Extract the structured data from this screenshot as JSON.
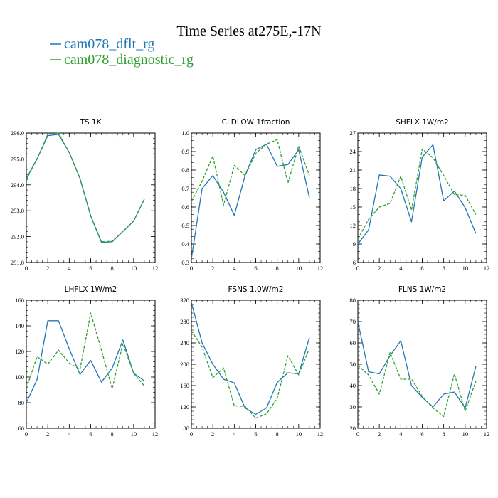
{
  "title": "Time Series at275E,-17N",
  "legend": [
    {
      "label": "cam078_dflt_rg",
      "color": "#1f77b4",
      "dash": "solid"
    },
    {
      "label": "cam078_diagnostic_rg",
      "color": "#2ca02c",
      "dash": "dashed"
    }
  ],
  "chart_data": [
    {
      "type": "line",
      "title": "TS   1K",
      "xlim": [
        0,
        12
      ],
      "ylim": [
        291.0,
        296.0
      ],
      "xticks": [
        0,
        2,
        4,
        6,
        8,
        10,
        12
      ],
      "yticks": [
        291.0,
        292.0,
        293.0,
        294.0,
        295.0,
        296.0
      ],
      "ytick_decimals": 1,
      "x": [
        0,
        1,
        2,
        3,
        4,
        5,
        6,
        7,
        8,
        9,
        10,
        11
      ],
      "series": [
        {
          "name": "cam078_dflt_rg",
          "values": [
            294.25,
            295.0,
            295.9,
            295.95,
            295.25,
            294.25,
            292.8,
            291.78,
            291.8,
            292.2,
            292.6,
            293.45
          ]
        },
        {
          "name": "cam078_diagnostic_rg",
          "values": [
            294.2,
            295.0,
            295.95,
            296.0,
            295.25,
            294.25,
            292.8,
            291.8,
            291.82,
            292.2,
            292.6,
            293.45
          ]
        }
      ]
    },
    {
      "type": "line",
      "title": "CLDLOW   1fraction",
      "xlim": [
        0,
        12
      ],
      "ylim": [
        0.3,
        1.0
      ],
      "xticks": [
        0,
        2,
        4,
        6,
        8,
        10,
        12
      ],
      "yticks": [
        0.3,
        0.4,
        0.5,
        0.6,
        0.7,
        0.8,
        0.9,
        1.0
      ],
      "ytick_decimals": 1,
      "x": [
        0,
        1,
        2,
        3,
        4,
        5,
        6,
        7,
        8,
        9,
        10,
        11
      ],
      "series": [
        {
          "name": "cam078_dflt_rg",
          "values": [
            0.32,
            0.7,
            0.77,
            0.68,
            0.555,
            0.77,
            0.91,
            0.94,
            0.82,
            0.83,
            0.91,
            0.65
          ]
        },
        {
          "name": "cam078_diagnostic_rg",
          "values": [
            0.63,
            0.74,
            0.875,
            0.61,
            0.825,
            0.77,
            0.89,
            0.94,
            0.965,
            0.73,
            0.93,
            0.77
          ]
        }
      ]
    },
    {
      "type": "line",
      "title": "SHFLX   1W/m2",
      "xlim": [
        0,
        12
      ],
      "ylim": [
        6,
        27
      ],
      "xticks": [
        0,
        2,
        4,
        6,
        8,
        10,
        12
      ],
      "yticks": [
        6,
        9,
        12,
        15,
        18,
        21,
        24,
        27
      ],
      "ytick_decimals": 0,
      "x": [
        0,
        1,
        2,
        3,
        4,
        5,
        6,
        7,
        8,
        9,
        10,
        11
      ],
      "series": [
        {
          "name": "cam078_dflt_rg",
          "values": [
            9.0,
            11.3,
            20.2,
            20.0,
            18.0,
            12.6,
            23.1,
            25.1,
            16.0,
            17.6,
            14.9,
            10.7
          ]
        },
        {
          "name": "cam078_diagnostic_rg",
          "values": [
            9.8,
            13.0,
            15.0,
            15.6,
            20.0,
            14.5,
            24.4,
            23.0,
            20.1,
            17.0,
            16.9,
            13.8
          ]
        }
      ]
    },
    {
      "type": "line",
      "title": "LHFLX   1W/m2",
      "xlim": [
        0,
        12
      ],
      "ylim": [
        60,
        160
      ],
      "xticks": [
        0,
        2,
        4,
        6,
        8,
        10,
        12
      ],
      "yticks": [
        60,
        80,
        100,
        120,
        140,
        160
      ],
      "ytick_decimals": 0,
      "x": [
        0,
        1,
        2,
        3,
        4,
        5,
        6,
        7,
        8,
        9,
        10,
        11
      ],
      "series": [
        {
          "name": "cam078_dflt_rg",
          "values": [
            80,
            98,
            144,
            144,
            122,
            102,
            113,
            96,
            107,
            129,
            103,
            97
          ]
        },
        {
          "name": "cam078_diagnostic_rg",
          "values": [
            91,
            116,
            110,
            121,
            111,
            106,
            150,
            121,
            91,
            126,
            103,
            93
          ]
        }
      ]
    },
    {
      "type": "line",
      "title": "FSNS   1.0W/m2",
      "xlim": [
        0,
        12
      ],
      "ylim": [
        80,
        320
      ],
      "xticks": [
        0,
        2,
        4,
        6,
        8,
        10,
        12
      ],
      "yticks": [
        80,
        120,
        160,
        200,
        240,
        280,
        320
      ],
      "ytick_decimals": 0,
      "x": [
        0,
        1,
        2,
        3,
        4,
        5,
        6,
        7,
        8,
        9,
        10,
        11
      ],
      "series": [
        {
          "name": "cam078_dflt_rg",
          "values": [
            316,
            240,
            200,
            172,
            165,
            118,
            106,
            118,
            166,
            184,
            182,
            250
          ]
        },
        {
          "name": "cam078_diagnostic_rg",
          "values": [
            263,
            232,
            175,
            193,
            122,
            121,
            99,
            107,
            136,
            216,
            180,
            230
          ]
        }
      ]
    },
    {
      "type": "line",
      "title": "FLNS   1W/m2",
      "xlim": [
        0,
        12
      ],
      "ylim": [
        20,
        80
      ],
      "xticks": [
        0,
        2,
        4,
        6,
        8,
        10,
        12
      ],
      "yticks": [
        20,
        30,
        40,
        50,
        60,
        70,
        80
      ],
      "ytick_decimals": 0,
      "x": [
        0,
        1,
        2,
        3,
        4,
        5,
        6,
        7,
        8,
        9,
        10,
        11
      ],
      "series": [
        {
          "name": "cam078_dflt_rg",
          "values": [
            70,
            46.5,
            45.5,
            54,
            61,
            40,
            34.5,
            30,
            36,
            37,
            29.5,
            49
          ]
        },
        {
          "name": "cam078_diagnostic_rg",
          "values": [
            49.5,
            45,
            36,
            55.5,
            43,
            43,
            35,
            29.5,
            25.5,
            45.5,
            28,
            42
          ]
        }
      ]
    }
  ]
}
